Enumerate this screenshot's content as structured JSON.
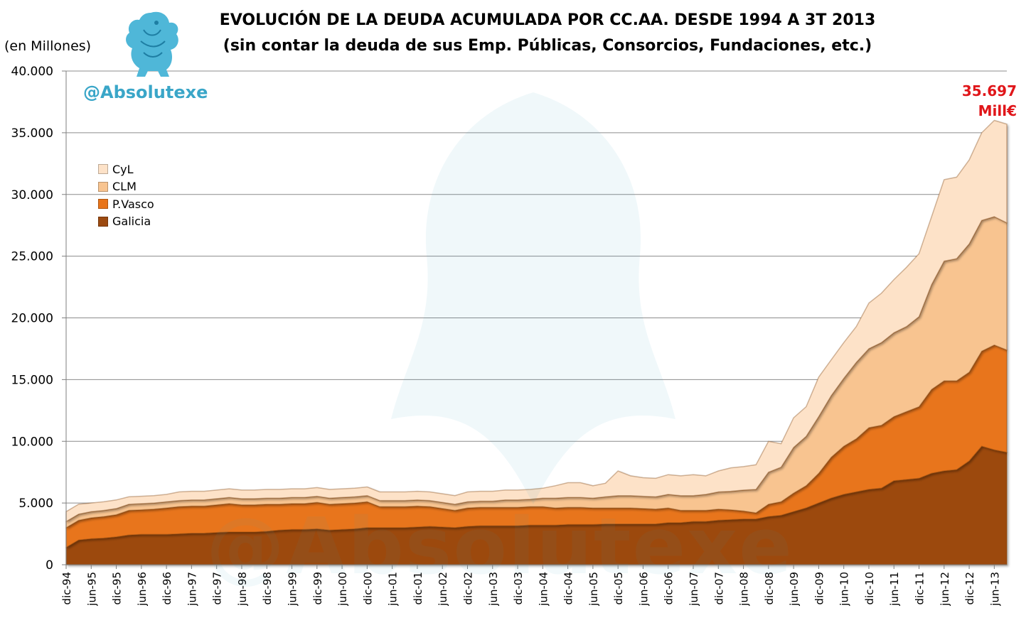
{
  "title_line1": "EVOLUCIÓN DE LA DEUDA ACUMULADA POR CC.AA. DESDE 1994 A 3T 2013",
  "title_line2": "(sin contar la deuda de sus Emp. Públicas, Consorcios, Fundaciones, etc.)",
  "unit_label": "(en Millones)",
  "brand": "@Absolutexe",
  "watermark_text": "@Absolutexe",
  "end_label": {
    "value": "35.697",
    "unit": "Mill€"
  },
  "colors": {
    "Galicia": "#9c4a10",
    "P.Vasco": "#e8741a",
    "CLM": "#f8c490",
    "CyL": "#fde2c8",
    "brand": "#3aa6c8",
    "end_label": "#e0161a"
  },
  "logo_icon": "griffin-logo-icon",
  "chart_data": {
    "type": "area",
    "stacked": true,
    "legend_position": "left",
    "grid": true,
    "ylim": [
      0,
      40000
    ],
    "y_ticks": [
      "0",
      "5.000",
      "10.000",
      "15.000",
      "20.000",
      "25.000",
      "30.000",
      "35.000",
      "40.000"
    ],
    "x_tick_labels": [
      "dic-94",
      "jun-95",
      "dic-95",
      "jun-96",
      "dic-96",
      "jun-97",
      "dic-97",
      "jun-98",
      "dic-98",
      "jun-99",
      "dic-99",
      "jun-00",
      "dic-00",
      "jun-01",
      "dic-01",
      "jun-02",
      "dic-02",
      "jun-03",
      "dic-03",
      "jun-04",
      "dic-04",
      "jun-05",
      "dic-05",
      "jun-06",
      "dic-06",
      "jun-07",
      "dic-07",
      "jun-08",
      "dic-08",
      "jun-09",
      "dic-09",
      "jun-10",
      "dic-10",
      "jun-11",
      "dic-11",
      "jun-12",
      "dic-12",
      "jun-13"
    ],
    "quarters": [
      "4T94",
      "1T95",
      "2T95",
      "3T95",
      "4T95",
      "1T96",
      "2T96",
      "3T96",
      "4T96",
      "1T97",
      "2T97",
      "3T97",
      "4T97",
      "1T98",
      "2T98",
      "3T98",
      "4T98",
      "1T99",
      "2T99",
      "3T99",
      "4T99",
      "1T00",
      "2T00",
      "3T00",
      "4T00",
      "1T01",
      "2T01",
      "3T01",
      "4T01",
      "1T02",
      "2T02",
      "3T02",
      "4T02",
      "1T03",
      "2T03",
      "3T03",
      "4T03",
      "1T04",
      "2T04",
      "3T04",
      "4T04",
      "1T05",
      "2T05",
      "3T05",
      "4T05",
      "1T06",
      "2T06",
      "3T06",
      "4T06",
      "1T07",
      "2T07",
      "3T07",
      "4T07",
      "1T08",
      "2T08",
      "3T08",
      "4T08",
      "1T09",
      "2T09",
      "3T09",
      "4T09",
      "1T10",
      "2T10",
      "3T10",
      "4T10",
      "1T11",
      "2T11",
      "3T11",
      "4T11",
      "1T12",
      "2T12",
      "3T12",
      "4T12",
      "1T13",
      "2T13",
      "3T13"
    ],
    "series": [
      {
        "name": "Galicia",
        "values": [
          1400,
          2000,
          2100,
          2150,
          2250,
          2400,
          2450,
          2450,
          2450,
          2500,
          2550,
          2550,
          2600,
          2650,
          2650,
          2650,
          2700,
          2800,
          2850,
          2850,
          2900,
          2800,
          2850,
          2900,
          3000,
          3000,
          3000,
          3000,
          3050,
          3100,
          3050,
          3000,
          3100,
          3150,
          3150,
          3150,
          3150,
          3200,
          3200,
          3200,
          3250,
          3250,
          3250,
          3300,
          3300,
          3300,
          3300,
          3300,
          3400,
          3400,
          3500,
          3500,
          3600,
          3650,
          3700,
          3700,
          3900,
          4000,
          4300,
          4600,
          5000,
          5400,
          5700,
          5900,
          6100,
          6200,
          6800,
          6900,
          7000,
          7400,
          7600,
          7700,
          8400,
          9600,
          9300,
          9100
        ]
      },
      {
        "name": "P.Vasco",
        "values": [
          1600,
          1600,
          1700,
          1750,
          1800,
          2000,
          2000,
          2050,
          2150,
          2200,
          2200,
          2200,
          2250,
          2300,
          2200,
          2200,
          2200,
          2100,
          2100,
          2100,
          2150,
          2100,
          2100,
          2100,
          2100,
          1700,
          1700,
          1700,
          1700,
          1600,
          1500,
          1400,
          1500,
          1500,
          1500,
          1500,
          1500,
          1500,
          1500,
          1400,
          1400,
          1400,
          1350,
          1300,
          1300,
          1300,
          1250,
          1200,
          1200,
          1000,
          900,
          900,
          900,
          800,
          650,
          500,
          1000,
          1100,
          1500,
          1800,
          2400,
          3300,
          3900,
          4300,
          5000,
          5100,
          5200,
          5500,
          5800,
          6800,
          7300,
          7200,
          7200,
          7700,
          8500,
          8300
        ]
      },
      {
        "name": "CLM",
        "values": [
          500,
          500,
          500,
          500,
          500,
          500,
          500,
          500,
          500,
          500,
          500,
          500,
          500,
          500,
          500,
          500,
          500,
          500,
          500,
          500,
          500,
          500,
          500,
          500,
          500,
          500,
          500,
          500,
          500,
          500,
          500,
          500,
          500,
          500,
          500,
          600,
          600,
          600,
          700,
          800,
          800,
          800,
          800,
          900,
          1000,
          1000,
          1000,
          1000,
          1100,
          1200,
          1200,
          1300,
          1400,
          1500,
          1700,
          1900,
          2600,
          2800,
          3700,
          4000,
          4600,
          5000,
          5500,
          6200,
          6400,
          6700,
          6800,
          6900,
          7300,
          8500,
          9700,
          9900,
          10400,
          10600,
          10400,
          10300
        ]
      },
      {
        "name": "CyL",
        "values": [
          800,
          800,
          700,
          700,
          700,
          600,
          600,
          600,
          600,
          700,
          700,
          700,
          700,
          700,
          700,
          700,
          700,
          700,
          700,
          700,
          700,
          700,
          700,
          700,
          700,
          700,
          700,
          700,
          700,
          700,
          700,
          700,
          800,
          800,
          800,
          800,
          800,
          800,
          800,
          1000,
          1200,
          1200,
          1000,
          1100,
          2000,
          1600,
          1500,
          1500,
          1600,
          1600,
          1700,
          1500,
          1700,
          1900,
          1900,
          2000,
          2500,
          1900,
          2400,
          2400,
          3200,
          2900,
          2900,
          2900,
          3700,
          4000,
          4300,
          4800,
          5100,
          5500,
          6600,
          6600,
          6800,
          7100,
          7800,
          7997
        ]
      }
    ],
    "last_total": 35697
  }
}
